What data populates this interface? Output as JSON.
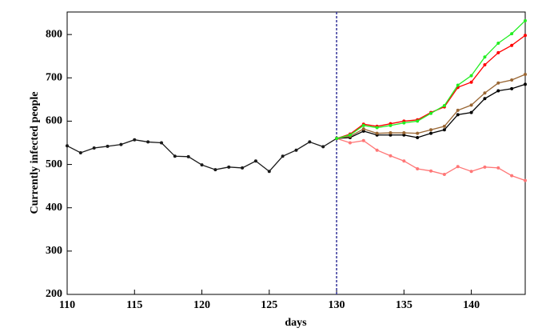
{
  "chart_data": {
    "type": "line",
    "xlabel": "days",
    "ylabel": "Currently  infected people",
    "x": [
      110,
      111,
      112,
      113,
      114,
      115,
      116,
      117,
      118,
      119,
      120,
      121,
      122,
      123,
      124,
      125,
      126,
      127,
      128,
      129,
      130,
      131,
      132,
      133,
      134,
      135,
      136,
      137,
      138,
      139,
      140,
      141,
      142,
      143,
      144
    ],
    "series": [
      {
        "color": "#1a1a1a",
        "values": [
          543,
          527,
          538,
          542,
          546,
          557,
          552,
          550,
          519,
          518,
          499,
          488,
          494,
          492,
          508,
          484,
          519,
          533,
          552,
          541,
          560,
          null,
          null,
          null,
          null,
          null,
          null,
          null,
          null,
          null,
          null,
          null,
          null,
          null,
          null
        ]
      },
      {
        "color": "#ff7777",
        "values": [
          null,
          null,
          null,
          null,
          null,
          null,
          null,
          null,
          null,
          null,
          null,
          null,
          null,
          null,
          null,
          null,
          null,
          null,
          null,
          null,
          560,
          550,
          555,
          533,
          520,
          508,
          490,
          485,
          477,
          495,
          484,
          494,
          492,
          474,
          463
        ]
      },
      {
        "color": "#000000",
        "values": [
          null,
          null,
          null,
          null,
          null,
          null,
          null,
          null,
          null,
          null,
          null,
          null,
          null,
          null,
          null,
          null,
          null,
          null,
          null,
          null,
          560,
          562,
          577,
          568,
          568,
          568,
          562,
          572,
          580,
          615,
          620,
          652,
          670,
          675,
          685
        ]
      },
      {
        "color": "#996633",
        "values": [
          null,
          null,
          null,
          null,
          null,
          null,
          null,
          null,
          null,
          null,
          null,
          null,
          null,
          null,
          null,
          null,
          null,
          null,
          null,
          null,
          560,
          565,
          582,
          572,
          573,
          573,
          572,
          580,
          588,
          625,
          637,
          665,
          688,
          695,
          708
        ]
      },
      {
        "color": "#ff0000",
        "values": [
          null,
          null,
          null,
          null,
          null,
          null,
          null,
          null,
          null,
          null,
          null,
          null,
          null,
          null,
          null,
          null,
          null,
          null,
          null,
          null,
          560,
          570,
          593,
          588,
          594,
          600,
          603,
          620,
          633,
          678,
          690,
          730,
          758,
          775,
          798
        ]
      },
      {
        "color": "#22ee22",
        "values": [
          null,
          null,
          null,
          null,
          null,
          null,
          null,
          null,
          null,
          null,
          null,
          null,
          null,
          null,
          null,
          null,
          null,
          null,
          null,
          null,
          560,
          568,
          590,
          585,
          590,
          596,
          600,
          618,
          636,
          683,
          705,
          748,
          780,
          802,
          832
        ]
      }
    ],
    "xlim": [
      110,
      144
    ],
    "xticks": [
      110,
      115,
      120,
      125,
      130,
      135,
      140
    ],
    "ylim": [
      200,
      852
    ],
    "yticks": [
      200,
      300,
      400,
      500,
      600,
      700,
      800
    ],
    "vline": 130,
    "vline_color": "#33339a"
  }
}
